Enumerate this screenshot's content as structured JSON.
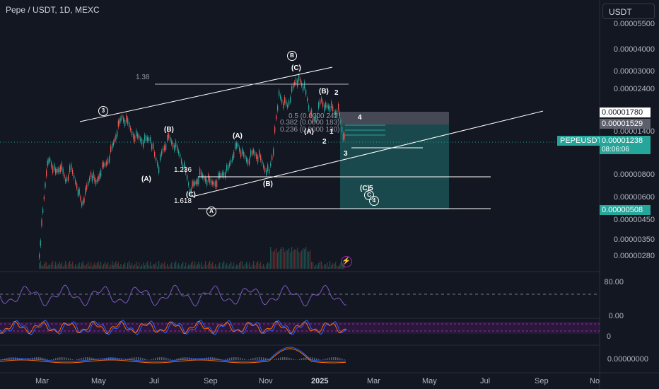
{
  "header": {
    "title": "Pepe / USDT, 1D, MEXC",
    "currency": "USDT"
  },
  "price_axis": [
    "0.00005500",
    "0.00004000",
    "0.00003000",
    "0.00002400",
    "0.00001400",
    "0.00000800",
    "0.00000600",
    "0.00000450",
    "0.00000350",
    "0.00000280"
  ],
  "price_boxes": {
    "upper": "0.00001780",
    "mid": "0.00001529",
    "current": "0.00001238",
    "countdown": "08:06:06",
    "lower": "0.00000508",
    "symbol": "PEPEUSDT"
  },
  "time_axis": [
    "Mar",
    "May",
    "Jul",
    "Sep",
    "Nov",
    "2025",
    "Mar",
    "May",
    "Jul",
    "Sep",
    "No"
  ],
  "fib": {
    "top": "1.38",
    "f05": "0.5 (0.0000 242)",
    "f0382": "0.382 (0.0000 183)",
    "f0236": "0.236 (0.0000 130)",
    "f1236": "1.236",
    "f1618": "1.618"
  },
  "waves": {
    "c3": "3",
    "cB": "B",
    "cA": "A",
    "cC": "C",
    "c4": "4",
    "C_top": "(C)",
    "B_top": "(B)",
    "n2": "2",
    "B_left": "(B)",
    "A_left": "(A)",
    "A_mid": "(A)",
    "B_low": "(B)",
    "C_low": "(C)",
    "A_right": "(A)",
    "n1": "1",
    "n2b": "2",
    "n3": "3",
    "n4": "4",
    "n5": "5",
    "C_proj": "(C)"
  },
  "indicators": {
    "rsi_level": "80.00",
    "rsi_low": "0.00",
    "stoch_level": "0",
    "macd_level": "0.00000000"
  },
  "colors": {
    "bg": "#131722",
    "up": "#26a69a",
    "down": "#ef5350",
    "rsi": "#7e57c2",
    "line": "#ffffff"
  }
}
